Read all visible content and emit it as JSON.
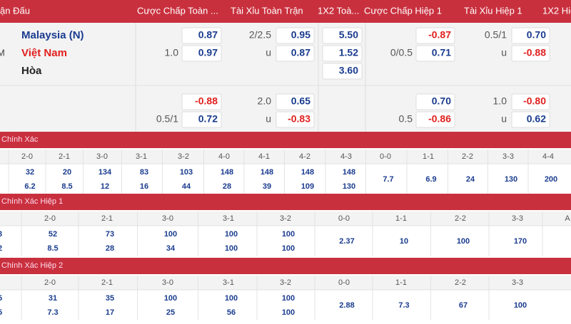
{
  "header": [
    "ận Đấu",
    "Cược Chấp Toàn ...",
    "Tài Xỉu Toàn Trận",
    "1X2 Toà...",
    "Cược Chấp Hiệp 1",
    "Tài Xỉu Hiệp 1",
    "1X2 Hiệ"
  ],
  "match": {
    "time": "M",
    "teams": [
      "Malaysia (N)",
      "Việt Nam",
      "Hòa"
    ],
    "rows": [
      [
        null,
        "0.87",
        "2/2.5",
        "0.95",
        "5.50",
        null,
        "-0.87",
        "0.5/1",
        "0.70"
      ],
      [
        "1.0",
        "0.97",
        "u",
        "0.87",
        "1.52",
        "0/0.5",
        "0.71",
        "u",
        "-0.88"
      ],
      [
        null,
        null,
        null,
        null,
        "3.60",
        null,
        null,
        null,
        null
      ],
      [
        null,
        "-0.88",
        "2.0",
        "0.65",
        null,
        null,
        "0.70",
        "1.0",
        "-0.80"
      ],
      [
        "0.5/1",
        "0.72",
        "u",
        "-0.83",
        null,
        "0.5",
        "-0.86",
        "u",
        "0.62"
      ]
    ]
  },
  "sections": [
    {
      "title": "Chính Xác",
      "partial": null,
      "scores": [
        "2-0",
        "2-1",
        "3-0",
        "3-1",
        "3-2",
        "4-0",
        "4-1",
        "4-2",
        "4-3",
        "0-0",
        "1-1",
        "2-2",
        "3-3",
        "4-4"
      ],
      "home": [
        "32",
        "20",
        "134",
        "83",
        "103",
        "148",
        "148",
        "148",
        "148"
      ],
      "away": [
        "6.2",
        "8.5",
        "12",
        "16",
        "44",
        "28",
        "39",
        "109",
        "130"
      ],
      "draw": [
        "7.7",
        "6.9",
        "24",
        "130",
        "200"
      ]
    },
    {
      "title": "Chính Xác Hiệp 1",
      "partial": [
        "3",
        "2"
      ],
      "scores": [
        "2-0",
        "2-1",
        "3-0",
        "3-1",
        "3-2",
        "0-0",
        "1-1",
        "2-2",
        "3-3",
        "A"
      ],
      "home": [
        "52",
        "73",
        "100",
        "100",
        "100"
      ],
      "away": [
        "8.5",
        "28",
        "34",
        "100",
        "100"
      ],
      "draw": [
        "2.37",
        "10",
        "100",
        "170"
      ]
    },
    {
      "title": "Chính Xác Hiệp 2",
      "partial": [
        "5",
        "5"
      ],
      "scores": [
        "2-0",
        "2-1",
        "3-0",
        "3-1",
        "3-2",
        "0-0",
        "1-1",
        "2-2",
        "3-3"
      ],
      "home": [
        "31",
        "35",
        "100",
        "100",
        "100"
      ],
      "away": [
        "7.3",
        "17",
        "25",
        "56",
        "100"
      ],
      "draw": [
        "2.88",
        "7.3",
        "67",
        "100"
      ]
    }
  ]
}
